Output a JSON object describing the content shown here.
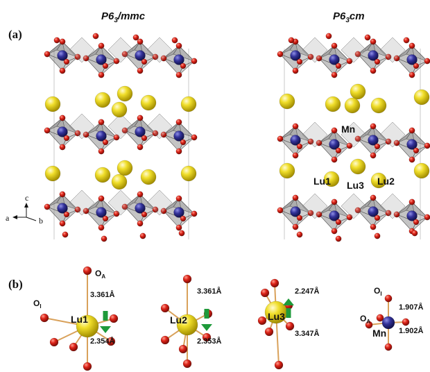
{
  "panels": {
    "a": "(a)",
    "b": "(b)"
  },
  "structures": [
    {
      "name_main": "P6",
      "name_sub": "3",
      "name_rest": "/mmc"
    },
    {
      "name_main": "P6",
      "name_sub": "3",
      "name_rest": "cm"
    }
  ],
  "right_labels": {
    "mn": "Mn",
    "lu1": "Lu1",
    "lu2": "Lu2",
    "lu3": "Lu3"
  },
  "axes": {
    "a": "a",
    "b": "b",
    "c": "c"
  },
  "sites": [
    {
      "label": "Lu1",
      "top_text": "O",
      "top_sub": "A",
      "left_text": "O",
      "left_sub": "I",
      "d_top": "3.361Å",
      "d_bottom": "2.354Å",
      "arrow": "down"
    },
    {
      "label": "Lu2",
      "d_top": "3.361Å",
      "d_bottom": "2.353Å",
      "arrow": "down"
    },
    {
      "label": "Lu3",
      "d_top": "2.247Å",
      "d_bottom": "3.347Å",
      "arrow": "up"
    },
    {
      "label": "Mn",
      "top_text": "O",
      "top_sub": "I",
      "left_text": "O",
      "left_sub": "A",
      "d_top": "1.907Å",
      "d_bottom": "1.902Å"
    }
  ],
  "colors": {
    "lu": "#e8d41c",
    "mn": "#2e2d8c",
    "o": "#d8201a",
    "bond": "#d9a15a",
    "arrow": "#1e9a3a",
    "poly": "#8a8a8a"
  }
}
